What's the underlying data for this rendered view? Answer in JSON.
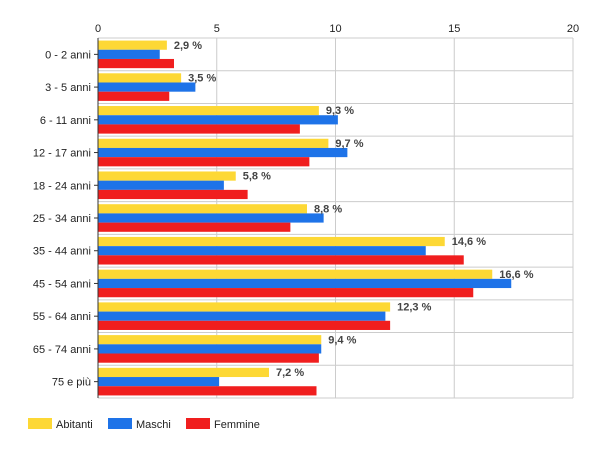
{
  "chart_data": {
    "type": "bar",
    "orientation": "horizontal",
    "categories": [
      "0 - 2 anni",
      "3 - 5 anni",
      "6 - 11 anni",
      "12 - 17 anni",
      "18 - 24 anni",
      "25 - 34 anni",
      "35 - 44 anni",
      "45 - 54 anni",
      "55 - 64 anni",
      "65 - 74 anni",
      "75 e più"
    ],
    "series": [
      {
        "name": "Abitanti",
        "color": "#fdd835",
        "values": [
          2.9,
          3.5,
          9.3,
          9.7,
          5.8,
          8.8,
          14.6,
          16.6,
          12.3,
          9.4,
          7.2
        ]
      },
      {
        "name": "Maschi",
        "color": "#1e73e8",
        "values": [
          2.6,
          4.1,
          10.1,
          10.5,
          5.3,
          9.5,
          13.8,
          17.4,
          12.1,
          9.4,
          5.1
        ]
      },
      {
        "name": "Femmine",
        "color": "#f01e1e",
        "values": [
          3.2,
          3.0,
          8.5,
          8.9,
          6.3,
          8.1,
          15.4,
          15.8,
          12.3,
          9.3,
          9.2
        ]
      }
    ],
    "data_labels": [
      "2,9 %",
      "3,5 %",
      "9,3 %",
      "9,7 %",
      "5,8 %",
      "8,8 %",
      "14,6 %",
      "16,6 %",
      "12,3 %",
      "9,4 %",
      "7,2 %"
    ],
    "x_ticks": [
      "0",
      "5",
      "10",
      "15",
      "20"
    ],
    "xlim": [
      0,
      20
    ],
    "grid": true,
    "legend_position": "bottom-left",
    "title": "",
    "xlabel": "",
    "ylabel": ""
  }
}
